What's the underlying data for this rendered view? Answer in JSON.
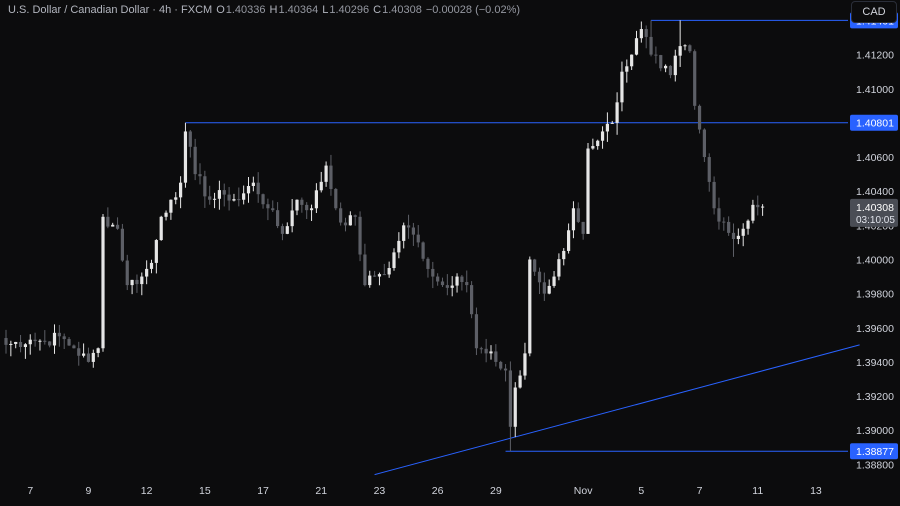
{
  "legend": {
    "symbol": "U.S. Dollar / Canadian Dollar · 4h · FXCM",
    "open_label": "O",
    "open": "1.40336",
    "high_label": "H",
    "high": "1.40364",
    "low_label": "L",
    "low": "1.40296",
    "close_label": "C",
    "close": "1.40308",
    "change": "−0.00028 (−0.02%)"
  },
  "currency_button": "CAD",
  "colors": {
    "background": "#0c0c0d",
    "candle_up": "#e6e6e6",
    "candle_down": "#5d5f66",
    "line": "#2962ff",
    "price_tag": "#2962ff",
    "current_tag": "#4a4d55"
  },
  "chart_data": {
    "type": "candlestick",
    "ylim": [
      1.3872,
      1.4152
    ],
    "y_ticks": [
      "1.41400",
      "1.41200",
      "1.41000",
      "1.40800",
      "1.40600",
      "1.40400",
      "1.40200",
      "1.40000",
      "1.39800",
      "1.39600",
      "1.39400",
      "1.39200",
      "1.39000",
      "1.38800"
    ],
    "y_tick_values": [
      1.414,
      1.412,
      1.41,
      1.408,
      1.406,
      1.404,
      1.402,
      1.4,
      1.398,
      1.396,
      1.394,
      1.392,
      1.39,
      1.388
    ],
    "x_ticks": [
      {
        "label": "7",
        "bar": 5
      },
      {
        "label": "9",
        "bar": 17
      },
      {
        "label": "12",
        "bar": 29
      },
      {
        "label": "15",
        "bar": 41
      },
      {
        "label": "17",
        "bar": 53
      },
      {
        "label": "21",
        "bar": 65
      },
      {
        "label": "23",
        "bar": 77
      },
      {
        "label": "26",
        "bar": 89
      },
      {
        "label": "29",
        "bar": 101
      },
      {
        "label": "Nov",
        "bar": 119
      },
      {
        "label": "5",
        "bar": 131
      },
      {
        "label": "7",
        "bar": 143
      },
      {
        "label": "11",
        "bar": 155
      },
      {
        "label": "13",
        "bar": 167
      }
    ],
    "close_anchors": [
      [
        0,
        1.395
      ],
      [
        5,
        1.3953
      ],
      [
        8,
        1.3952
      ],
      [
        11,
        1.3955
      ],
      [
        14,
        1.3948
      ],
      [
        17,
        1.394
      ],
      [
        19,
        1.3948
      ],
      [
        20,
        1.4025
      ],
      [
        23,
        1.4018
      ],
      [
        25,
        1.3985
      ],
      [
        28,
        1.399
      ],
      [
        30,
        1.3998
      ],
      [
        32,
        1.4025
      ],
      [
        34,
        1.4035
      ],
      [
        36,
        1.4045
      ],
      [
        37,
        1.4075
      ],
      [
        39,
        1.405
      ],
      [
        42,
        1.4035
      ],
      [
        45,
        1.4038
      ],
      [
        48,
        1.4035
      ],
      [
        51,
        1.4045
      ],
      [
        54,
        1.403
      ],
      [
        57,
        1.4015
      ],
      [
        60,
        1.4035
      ],
      [
        63,
        1.403
      ],
      [
        66,
        1.4055
      ],
      [
        68,
        1.403
      ],
      [
        70,
        1.402
      ],
      [
        72,
        1.4025
      ],
      [
        74,
        1.3985
      ],
      [
        76,
        1.399
      ],
      [
        79,
        1.3995
      ],
      [
        82,
        1.402
      ],
      [
        85,
        1.401
      ],
      [
        88,
        1.399
      ],
      [
        90,
        1.3985
      ],
      [
        93,
        1.399
      ],
      [
        95,
        1.3985
      ],
      [
        97,
        1.3948
      ],
      [
        99,
        1.3945
      ],
      [
        101,
        1.394
      ],
      [
        103,
        1.3935
      ],
      [
        104,
        1.3902
      ],
      [
        105,
        1.3925
      ],
      [
        106,
        1.3932
      ],
      [
        107,
        1.3945
      ],
      [
        108,
        1.4
      ],
      [
        111,
        1.398
      ],
      [
        113,
        1.399
      ],
      [
        115,
        1.4005
      ],
      [
        117,
        1.403
      ],
      [
        119,
        1.4015
      ],
      [
        120,
        1.4065
      ],
      [
        123,
        1.4075
      ],
      [
        125,
        1.408
      ],
      [
        127,
        1.411
      ],
      [
        129,
        1.412
      ],
      [
        131,
        1.4135
      ],
      [
        133,
        1.412
      ],
      [
        135,
        1.4112
      ],
      [
        137,
        1.4108
      ],
      [
        139,
        1.4125
      ],
      [
        141,
        1.4122
      ],
      [
        142,
        1.409
      ],
      [
        144,
        1.406
      ],
      [
        146,
        1.403
      ],
      [
        148,
        1.4022
      ],
      [
        150,
        1.4012
      ],
      [
        152,
        1.4018
      ],
      [
        154,
        1.4032
      ],
      [
        156,
        1.4031
      ]
    ],
    "events": [
      {
        "bar": 37,
        "high": 1.40801
      },
      {
        "bar": 104,
        "low": 1.38877
      },
      {
        "bar": 133,
        "high": 1.41401
      },
      {
        "bar": 139,
        "high": 1.41401
      },
      {
        "bar": 150,
        "low": 1.40015
      }
    ],
    "horizontal_levels": [
      {
        "value": 1.41401,
        "label": "1.41401",
        "from_bar": 133
      },
      {
        "value": 1.40801,
        "label": "1.40801",
        "from_bar": 37
      },
      {
        "value": 1.38877,
        "label": "1.38877",
        "from_bar": 103
      }
    ],
    "trendline": {
      "from": [
        76,
        1.3874
      ],
      "to": [
        176,
        1.395
      ]
    },
    "current_price": {
      "value": 1.40308,
      "label": "1.40308",
      "countdown": "03:10:05"
    }
  }
}
